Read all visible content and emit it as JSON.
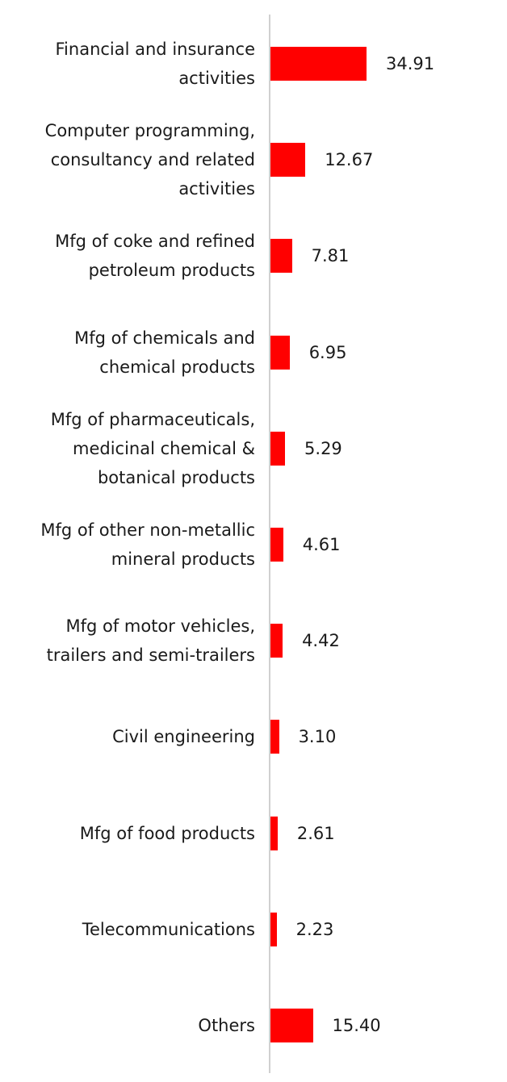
{
  "chart_data": {
    "type": "bar",
    "orientation": "horizontal",
    "categories": [
      "Financial and insurance activities",
      "Computer programming, consultancy and related activities",
      "Mfg of coke and refined petroleum products",
      "Mfg of chemicals and chemical products",
      "Mfg of pharmaceuticals, medicinal chemical & botanical products",
      "Mfg of other non-metallic mineral products",
      "Mfg of motor vehicles, trailers and semi-trailers",
      "Civil engineering",
      "Mfg of food products",
      "Telecommunications",
      "Others"
    ],
    "category_lines": [
      [
        "Financial and insurance",
        "activities"
      ],
      [
        "Computer programming,",
        "consultancy and related",
        "activities"
      ],
      [
        "Mfg of coke and refined",
        "petroleum products"
      ],
      [
        "Mfg of chemicals and",
        "chemical products"
      ],
      [
        "Mfg of pharmaceuticals,",
        "medicinal chemical &",
        "botanical products"
      ],
      [
        "Mfg of other non-metallic",
        "mineral products"
      ],
      [
        "Mfg of motor vehicles,",
        "trailers and semi-trailers"
      ],
      [
        "Civil engineering"
      ],
      [
        "Mfg of food products"
      ],
      [
        "Telecommunications"
      ],
      [
        "Others"
      ]
    ],
    "values": [
      34.91,
      12.67,
      7.81,
      6.95,
      5.29,
      4.61,
      4.42,
      3.1,
      2.61,
      2.23,
      15.4
    ],
    "value_labels": [
      "34.91",
      "12.67",
      "7.81",
      "6.95",
      "5.29",
      "4.61",
      "4.42",
      "3.10",
      "2.61",
      "2.23",
      "15.40"
    ],
    "bar_color": "#ff0000",
    "title": "",
    "xlabel": "",
    "ylabel": "",
    "grid": false,
    "legend": "none"
  }
}
